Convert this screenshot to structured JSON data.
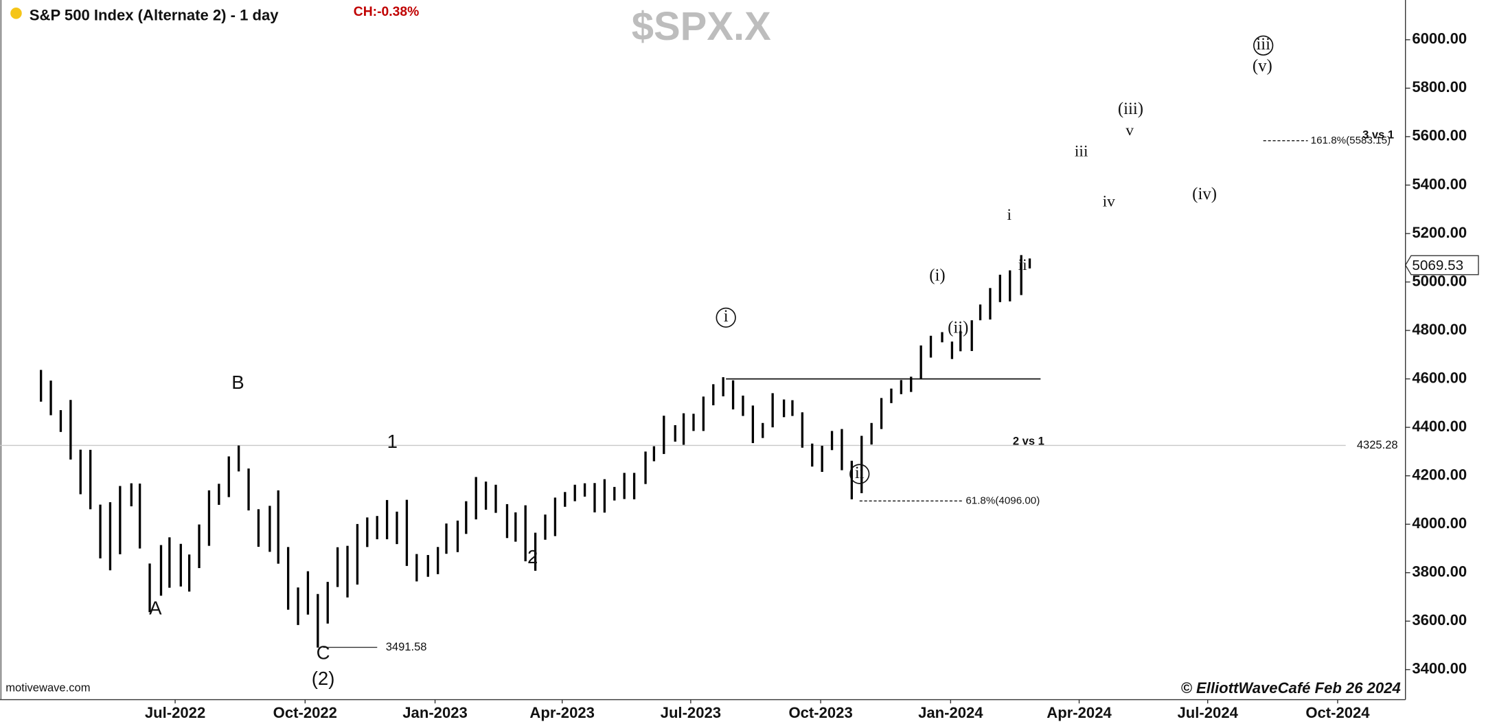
{
  "chart_data": {
    "type": "ohlc",
    "title": "S&P 500 Index (Alternate 2) - 1 day",
    "change_label": "CH:-0.38%",
    "watermark": "$SPX.X",
    "source": "motivewave.com",
    "credit": "© ElliottWaveCafé Feb 26 2024",
    "color": "#000000",
    "last_price": 5069.53,
    "xlim": [
      "2022-02-27",
      "2024-11-18"
    ],
    "xticks": [
      {
        "value": "2022-07-01",
        "label": "Jul-2022"
      },
      {
        "value": "2022-10-01",
        "label": "Oct-2022"
      },
      {
        "value": "2023-01-01",
        "label": "Jan-2023"
      },
      {
        "value": "2023-04-01",
        "label": "Apr-2023"
      },
      {
        "value": "2023-07-01",
        "label": "Jul-2023"
      },
      {
        "value": "2023-10-01",
        "label": "Oct-2023"
      },
      {
        "value": "2024-01-01",
        "label": "Jan-2024"
      },
      {
        "value": "2024-04-01",
        "label": "Apr-2024"
      },
      {
        "value": "2024-07-01",
        "label": "Jul-2024"
      },
      {
        "value": "2024-10-01",
        "label": "Oct-2024"
      }
    ],
    "ylim": [
      3276,
      6164
    ],
    "yticks": [
      {
        "value": 3400,
        "label": "3400.00"
      },
      {
        "value": 3600,
        "label": "3600.00"
      },
      {
        "value": 3800,
        "label": "3800.00"
      },
      {
        "value": 4000,
        "label": "4000.00"
      },
      {
        "value": 4200,
        "label": "4200.00"
      },
      {
        "value": 4400,
        "label": "4400.00"
      },
      {
        "value": 4600,
        "label": "4600.00"
      },
      {
        "value": 4800,
        "label": "4800.00"
      },
      {
        "value": 5000,
        "label": "5000.00"
      },
      {
        "value": 5200,
        "label": "5200.00"
      },
      {
        "value": 5400,
        "label": "5400.00"
      },
      {
        "value": 5600,
        "label": "5600.00"
      },
      {
        "value": 5800,
        "label": "5800.00"
      },
      {
        "value": 6000,
        "label": "6000.00"
      }
    ],
    "x": [
      "2022-03-28",
      "2022-04-04",
      "2022-04-11",
      "2022-04-18",
      "2022-04-25",
      "2022-05-02",
      "2022-05-09",
      "2022-05-16",
      "2022-05-23",
      "2022-05-31",
      "2022-06-06",
      "2022-06-13",
      "2022-06-21",
      "2022-06-27",
      "2022-07-05",
      "2022-07-11",
      "2022-07-18",
      "2022-07-25",
      "2022-08-01",
      "2022-08-08",
      "2022-08-15",
      "2022-08-22",
      "2022-08-29",
      "2022-09-06",
      "2022-09-12",
      "2022-09-19",
      "2022-09-26",
      "2022-10-03",
      "2022-10-10",
      "2022-10-17",
      "2022-10-24",
      "2022-10-31",
      "2022-11-07",
      "2022-11-14",
      "2022-11-21",
      "2022-11-28",
      "2022-12-05",
      "2022-12-12",
      "2022-12-19",
      "2022-12-27",
      "2023-01-03",
      "2023-01-09",
      "2023-01-17",
      "2023-01-23",
      "2023-01-30",
      "2023-02-06",
      "2023-02-13",
      "2023-02-21",
      "2023-02-27",
      "2023-03-06",
      "2023-03-13",
      "2023-03-20",
      "2023-03-27",
      "2023-04-03",
      "2023-04-10",
      "2023-04-17",
      "2023-04-24",
      "2023-05-01",
      "2023-05-08",
      "2023-05-15",
      "2023-05-22",
      "2023-05-30",
      "2023-06-05",
      "2023-06-12",
      "2023-06-20",
      "2023-06-26",
      "2023-07-03",
      "2023-07-10",
      "2023-07-17",
      "2023-07-24",
      "2023-07-31",
      "2023-08-07",
      "2023-08-14",
      "2023-08-21",
      "2023-08-28",
      "2023-09-05",
      "2023-09-11",
      "2023-09-18",
      "2023-09-25",
      "2023-10-02",
      "2023-10-09",
      "2023-10-16",
      "2023-10-23",
      "2023-10-30",
      "2023-11-06",
      "2023-11-13",
      "2023-11-20",
      "2023-11-27",
      "2023-12-04",
      "2023-12-11",
      "2023-12-18",
      "2023-12-26",
      "2024-01-02",
      "2024-01-08",
      "2024-01-16",
      "2024-01-22",
      "2024-01-29",
      "2024-02-05",
      "2024-02-12",
      "2024-02-20",
      "2024-02-26"
    ],
    "high": [
      4637,
      4593,
      4471,
      4513,
      4308,
      4307,
      4081,
      4091,
      4158,
      4169,
      4168,
      3838,
      3914,
      3946,
      3919,
      3875,
      3999,
      4140,
      4167,
      4280,
      4325,
      4230,
      4062,
      4076,
      4140,
      3906,
      3739,
      3806,
      3712,
      3762,
      3905,
      3911,
      4001,
      4028,
      4034,
      4100,
      4052,
      4101,
      3877,
      3873,
      3906,
      4003,
      4015,
      4095,
      4195,
      4176,
      4163,
      4083,
      4049,
      4078,
      3965,
      4040,
      4110,
      4133,
      4163,
      4169,
      4170,
      4186,
      4154,
      4212,
      4212,
      4300,
      4322,
      4448,
      4409,
      4458,
      4456,
      4527,
      4578,
      4607,
      4594,
      4531,
      4490,
      4418,
      4541,
      4515,
      4512,
      4462,
      4333,
      4324,
      4385,
      4393,
      4262,
      4365,
      4418,
      4521,
      4560,
      4595,
      4609,
      4738,
      4778,
      4793,
      4754,
      4798,
      4842,
      4907,
      4975,
      5030,
      5048,
      5111,
      5097
    ],
    "low": [
      4506,
      4450,
      4381,
      4267,
      4124,
      4062,
      3859,
      3810,
      3876,
      4074,
      3900,
      3637,
      3705,
      3738,
      3743,
      3722,
      3819,
      3911,
      4080,
      4112,
      4218,
      4057,
      3907,
      3886,
      3837,
      3647,
      3584,
      3627,
      3491,
      3590,
      3741,
      3698,
      3751,
      3906,
      3938,
      3938,
      3918,
      3828,
      3764,
      3783,
      3794,
      3878,
      3885,
      3960,
      4020,
      4060,
      4047,
      3943,
      3928,
      3847,
      3808,
      3936,
      3951,
      4072,
      4095,
      4114,
      4049,
      4048,
      4098,
      4104,
      4103,
      4166,
      4260,
      4290,
      4341,
      4328,
      4385,
      4385,
      4491,
      4528,
      4474,
      4447,
      4335,
      4356,
      4400,
      4442,
      4447,
      4316,
      4238,
      4216,
      4306,
      4223,
      4103,
      4128,
      4329,
      4393,
      4500,
      4537,
      4546,
      4600,
      4688,
      4751,
      4682,
      4714,
      4715,
      4842,
      4845,
      4917,
      4920,
      4946,
      5056
    ],
    "labeled_levels": [
      4325.28,
      3491.58
    ],
    "level_lines": [
      4600
    ],
    "fib_levels": [
      {
        "value": 4096,
        "label": "61.8%(4096.00)"
      },
      {
        "value": 5583.15,
        "label": "161.8%(5583.15)"
      }
    ],
    "annotations": [
      "A",
      "B",
      "C",
      "(2)",
      "1",
      "2",
      "i",
      "(i)",
      "(ii)",
      "ii",
      "i",
      "ii",
      "iii",
      "iv",
      "(iii)",
      "v",
      "(iv)",
      "iii",
      "(v)"
    ],
    "notes": [
      "3 vs 1",
      "2 vs 1"
    ]
  }
}
